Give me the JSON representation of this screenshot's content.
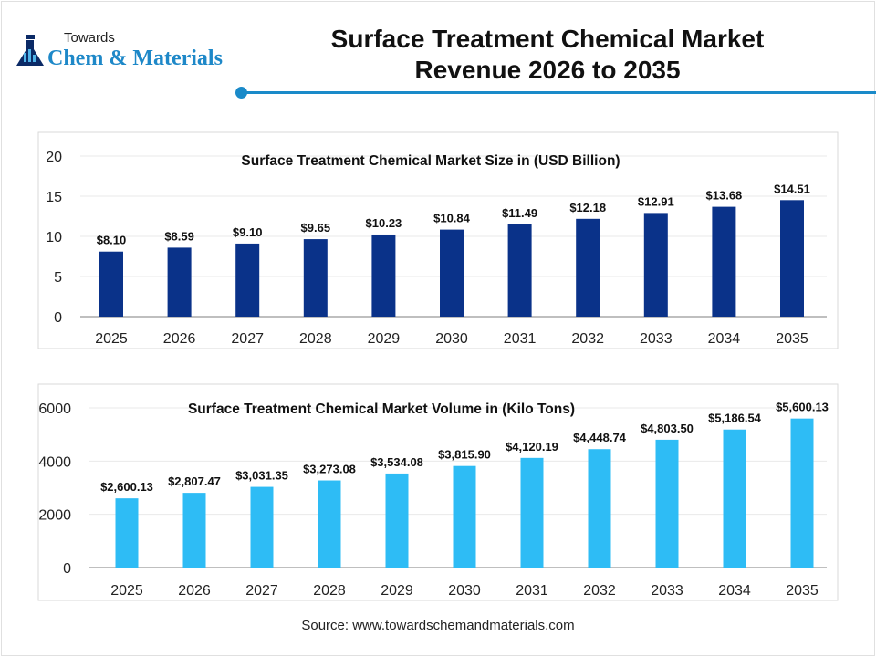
{
  "header": {
    "logo_top": "Towards",
    "logo_main": "Chem & Materials",
    "title_line1": "Surface Treatment Chemical Market",
    "title_line2": "Revenue 2026 to 2035",
    "accent_color": "#1a8ac9"
  },
  "chart_data": [
    {
      "type": "bar",
      "title": "Surface Treatment Chemical Market Size in (USD Billion)",
      "categories": [
        "2025",
        "2026",
        "2027",
        "2028",
        "2029",
        "2030",
        "2031",
        "2032",
        "2033",
        "2034",
        "2035"
      ],
      "values": [
        8.1,
        8.59,
        9.1,
        9.65,
        10.23,
        10.84,
        11.49,
        12.18,
        12.91,
        13.68,
        14.51
      ],
      "data_labels": [
        "$8.10",
        "$8.59",
        "$9.10",
        "$9.65",
        "$10.23",
        "$10.84",
        "$11.49",
        "$12.18",
        "$12.91",
        "$13.68",
        "$14.51"
      ],
      "ylim": [
        0,
        20
      ],
      "yticks": [
        "0",
        "5",
        "10",
        "15",
        "20"
      ],
      "grid": true,
      "color": "#0a3289"
    },
    {
      "type": "bar",
      "title": "Surface Treatment Chemical Market Volume in (Kilo Tons)",
      "categories": [
        "2025",
        "2026",
        "2027",
        "2028",
        "2029",
        "2030",
        "2031",
        "2032",
        "2033",
        "2034",
        "2035"
      ],
      "values": [
        2600.13,
        2807.47,
        3031.35,
        3273.08,
        3534.08,
        3815.9,
        4120.19,
        4448.74,
        4803.5,
        5186.54,
        5600.13
      ],
      "data_labels": [
        "$2,600.13",
        "$2,807.47",
        "$3,031.35",
        "$3,273.08",
        "$3,534.08",
        "$3,815.90",
        "$4,120.19",
        "$4,448.74",
        "$4,803.50",
        "$5,186.54",
        "$5,600.13"
      ],
      "ylim": [
        0,
        6000
      ],
      "yticks": [
        "0",
        "2000",
        "4000",
        "6000"
      ],
      "grid": true,
      "color": "#2ebcf5"
    }
  ],
  "footer": {
    "source": "Source: www.towardschemandmaterials.com"
  }
}
